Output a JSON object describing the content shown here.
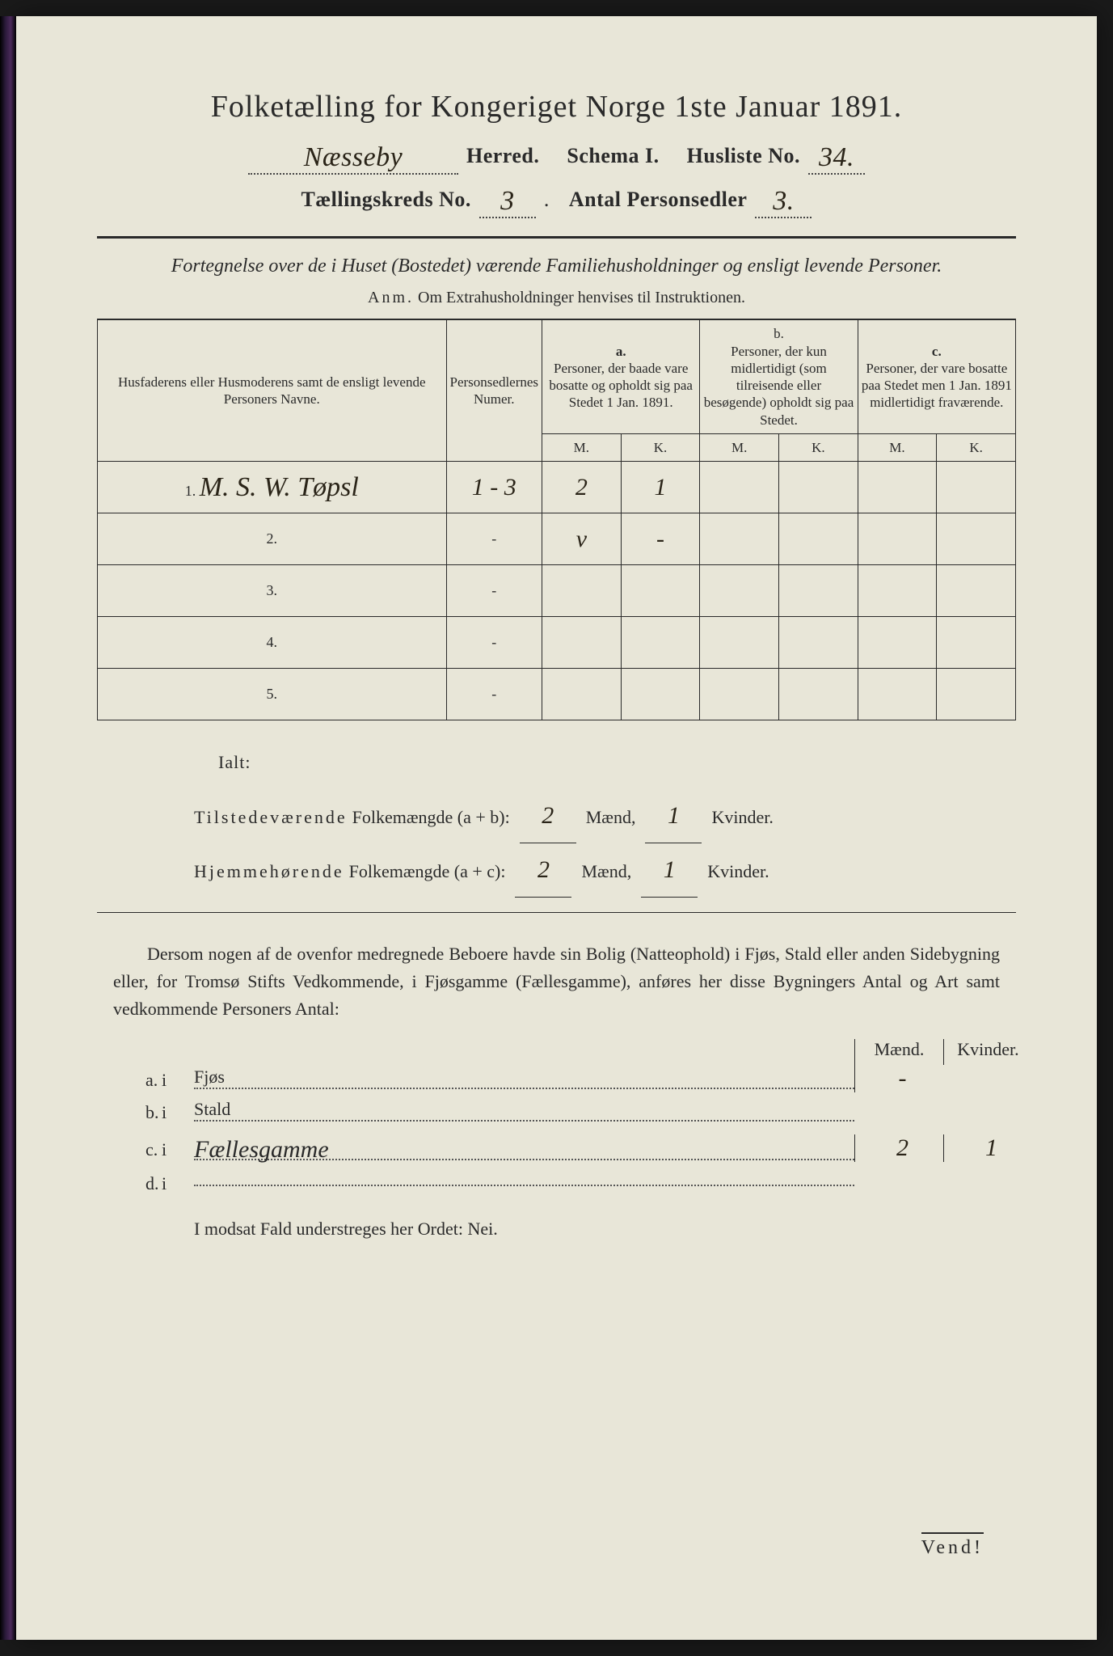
{
  "colors": {
    "paper": "#e8e6d8",
    "ink": "#2a2a2a",
    "hand": "#2a2418",
    "background": "#1a1a1a"
  },
  "header": {
    "title": "Folketælling for Kongeriget Norge 1ste Januar 1891.",
    "herred_value": "Næsseby",
    "herred_label": "Herred.",
    "schema_label": "Schema I.",
    "husliste_label": "Husliste No.",
    "husliste_value": "34.",
    "kreds_label": "Tællingskreds No.",
    "kreds_value": "3",
    "antal_label": "Antal Personsedler",
    "antal_value": "3."
  },
  "intro": {
    "text": "Fortegnelse over de i Huset (Bostedet) værende Familiehusholdninger og ensligt levende Personer.",
    "anm_label": "Anm.",
    "anm_text": "Om Extrahusholdninger henvises til Instruktionen."
  },
  "table": {
    "col_name": "Husfaderens eller Husmoderens samt de ensligt levende Personers Navne.",
    "col_num": "Personsedlernes Numer.",
    "col_a_label": "a.",
    "col_a": "Personer, der baade vare bosatte og opholdt sig paa Stedet 1 Jan. 1891.",
    "col_b_label": "b.",
    "col_b": "Personer, der kun midlertidigt (som tilreisende eller besøgende) opholdt sig paa Stedet.",
    "col_c_label": "c.",
    "col_c": "Personer, der vare bosatte paa Stedet men 1 Jan. 1891 midlertidigt fraværende.",
    "m": "M.",
    "k": "K.",
    "rows": [
      {
        "n": "1.",
        "name": "M. S. W. Tøpsl",
        "num": "1 - 3",
        "am": "2",
        "ak": "1",
        "bm": "",
        "bk": "",
        "cm": "",
        "ck": ""
      },
      {
        "n": "2.",
        "name": "",
        "num": "-",
        "am": "v",
        "ak": "-",
        "bm": "",
        "bk": "",
        "cm": "",
        "ck": ""
      },
      {
        "n": "3.",
        "name": "",
        "num": "-",
        "am": "",
        "ak": "",
        "bm": "",
        "bk": "",
        "cm": "",
        "ck": ""
      },
      {
        "n": "4.",
        "name": "",
        "num": "-",
        "am": "",
        "ak": "",
        "bm": "",
        "bk": "",
        "cm": "",
        "ck": ""
      },
      {
        "n": "5.",
        "name": "",
        "num": "-",
        "am": "",
        "ak": "",
        "bm": "",
        "bk": "",
        "cm": "",
        "ck": ""
      }
    ]
  },
  "totals": {
    "ialt": "Ialt:",
    "line1_label": "Tilstedeværende",
    "line1_rest": "Folkemængde (a + b):",
    "line2_label": "Hjemmehørende",
    "line2_rest": "Folkemængde (a + c):",
    "maend": "Mænd,",
    "kvinder": "Kvinder.",
    "t_m": "2",
    "t_k": "1",
    "h_m": "2",
    "h_k": "1"
  },
  "paragraph": "Dersom nogen af de ovenfor medregnede Beboere havde sin Bolig (Natteophold) i Fjøs, Stald eller anden Sidebygning eller, for Tromsø Stifts Vedkommende, i Fjøsgamme (Fællesgamme), anføres her disse Bygningers Antal og Art samt vedkommende Personers Antal:",
  "subtable": {
    "h_maend": "Mænd.",
    "h_kvinder": "Kvinder.",
    "rows": [
      {
        "lbl": "a.",
        "i": "i",
        "name_print": "Fjøs",
        "name_hand": "",
        "m": "-",
        "k": ""
      },
      {
        "lbl": "b.",
        "i": "i",
        "name_print": "Stald",
        "name_hand": "",
        "m": "",
        "k": ""
      },
      {
        "lbl": "c.",
        "i": "i",
        "name_print": "",
        "name_hand": "Fællesgamme",
        "m": "2",
        "k": "1"
      },
      {
        "lbl": "d.",
        "i": "i",
        "name_print": "",
        "name_hand": "",
        "m": "",
        "k": ""
      }
    ]
  },
  "footer": {
    "nei": "I modsat Fald understreges her Ordet: Nei.",
    "vend": "Vend!"
  }
}
